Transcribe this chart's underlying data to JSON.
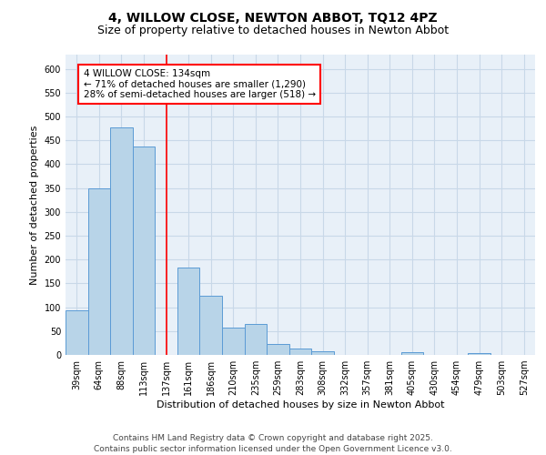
{
  "title": "4, WILLOW CLOSE, NEWTON ABBOT, TQ12 4PZ",
  "subtitle": "Size of property relative to detached houses in Newton Abbot",
  "xlabel": "Distribution of detached houses by size in Newton Abbot",
  "ylabel": "Number of detached properties",
  "categories": [
    "39sqm",
    "64sqm",
    "88sqm",
    "113sqm",
    "137sqm",
    "161sqm",
    "186sqm",
    "210sqm",
    "235sqm",
    "259sqm",
    "283sqm",
    "308sqm",
    "332sqm",
    "357sqm",
    "381sqm",
    "405sqm",
    "430sqm",
    "454sqm",
    "479sqm",
    "503sqm",
    "527sqm"
  ],
  "values": [
    93,
    350,
    478,
    438,
    0,
    183,
    125,
    57,
    65,
    22,
    13,
    7,
    0,
    0,
    0,
    5,
    0,
    0,
    4,
    0,
    0
  ],
  "bar_color": "#b8d4e8",
  "bar_edge_color": "#5b9bd5",
  "red_line_x": 4.0,
  "annotation_text": "4 WILLOW CLOSE: 134sqm\n← 71% of detached houses are smaller (1,290)\n28% of semi-detached houses are larger (518) →",
  "annotation_box_color": "white",
  "annotation_box_edge_color": "red",
  "ylim": [
    0,
    630
  ],
  "yticks": [
    0,
    50,
    100,
    150,
    200,
    250,
    300,
    350,
    400,
    450,
    500,
    550,
    600
  ],
  "grid_color": "#c8d8e8",
  "background_color": "#e8f0f8",
  "footer_text": "Contains HM Land Registry data © Crown copyright and database right 2025.\nContains public sector information licensed under the Open Government Licence v3.0.",
  "title_fontsize": 10,
  "subtitle_fontsize": 9,
  "axis_label_fontsize": 8,
  "tick_fontsize": 7,
  "annotation_fontsize": 7.5,
  "footer_fontsize": 6.5
}
